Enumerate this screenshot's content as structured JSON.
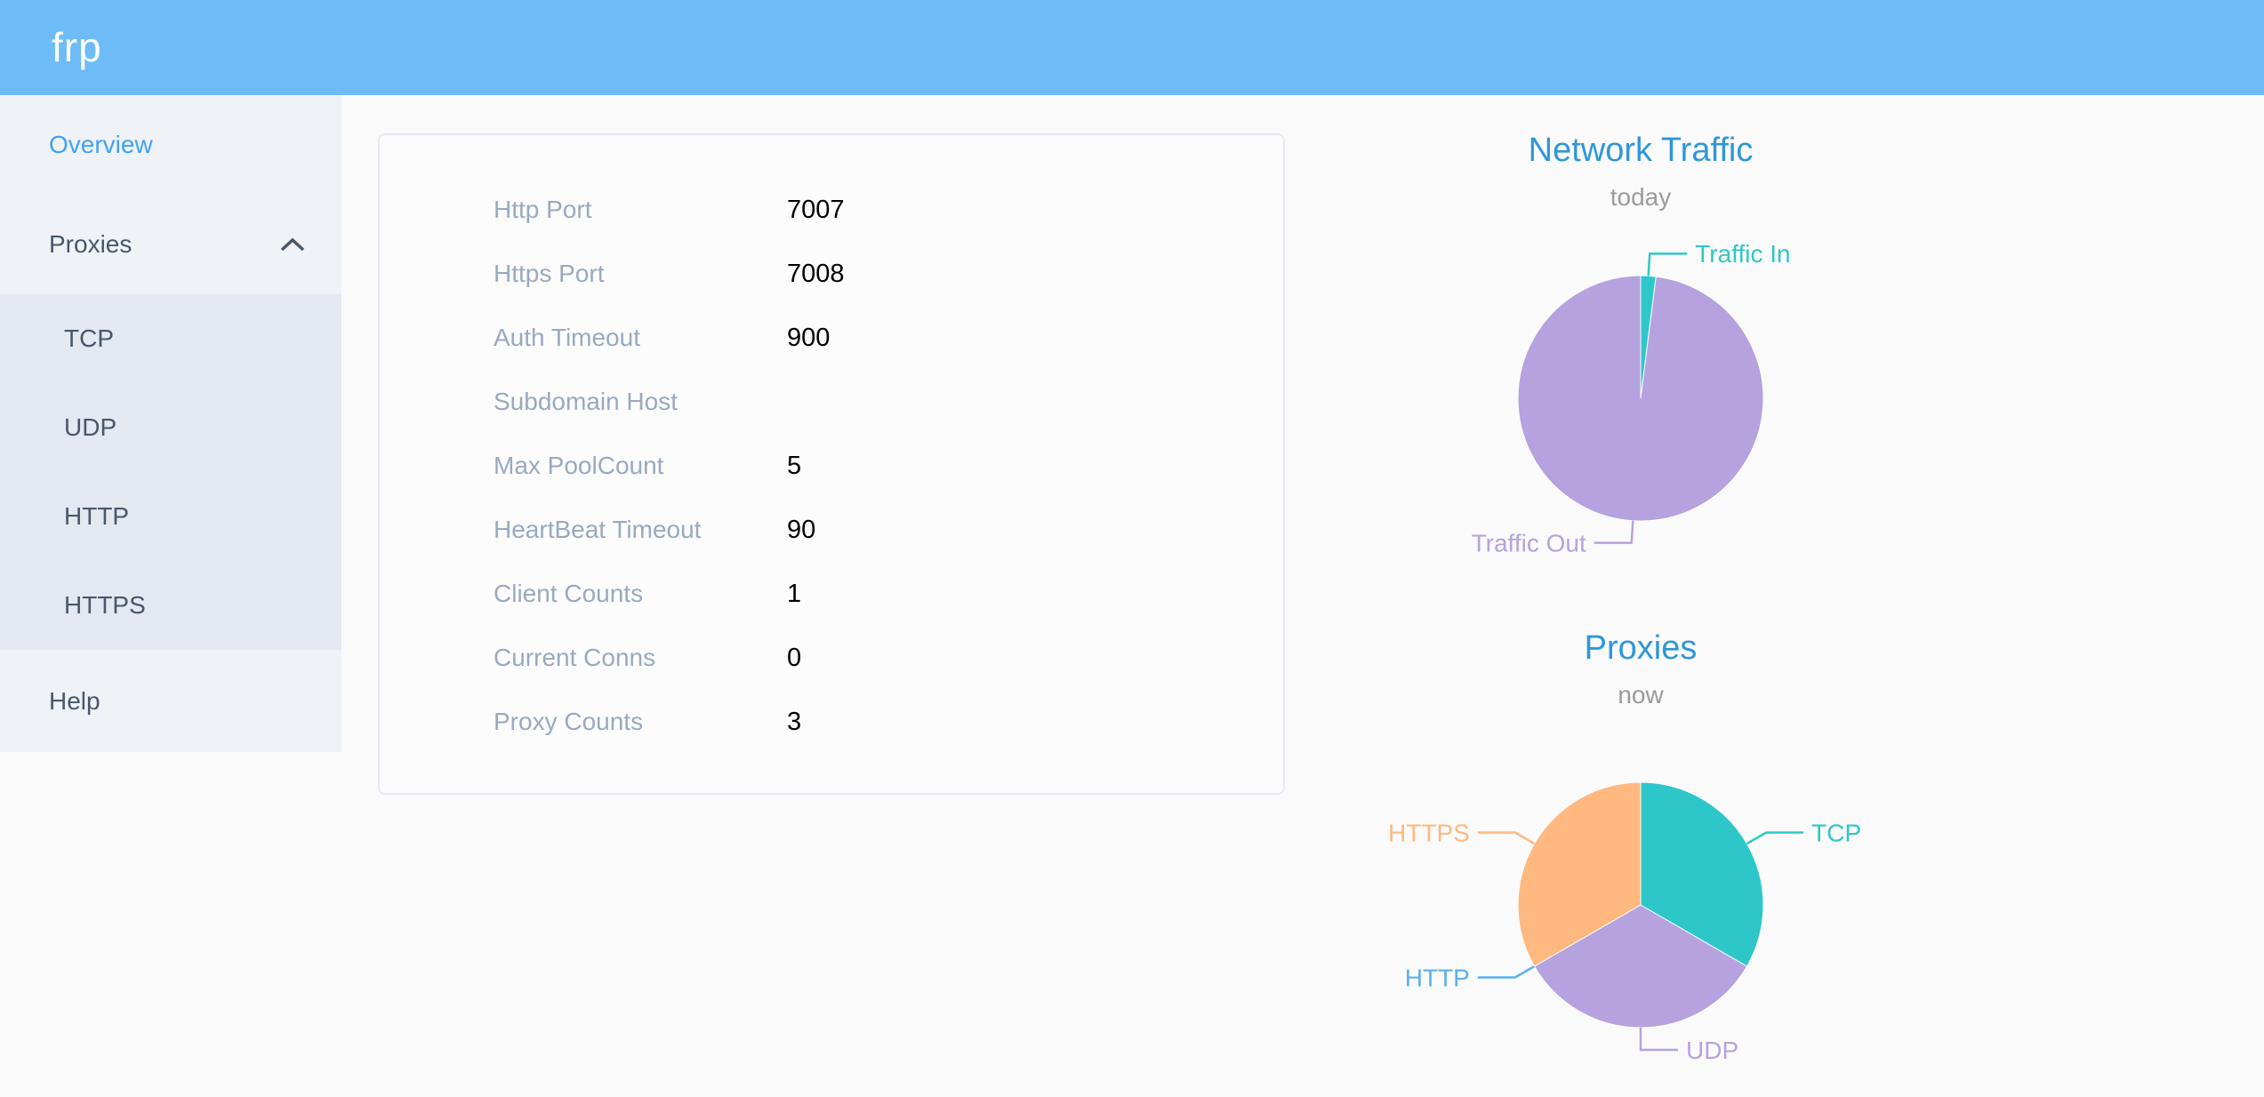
{
  "header": {
    "logo": "frp"
  },
  "sidebar": {
    "items": [
      {
        "id": "overview",
        "label": "Overview",
        "active": true
      },
      {
        "id": "proxies",
        "label": "Proxies",
        "expanded": true,
        "children": [
          {
            "id": "tcp",
            "label": "TCP"
          },
          {
            "id": "udp",
            "label": "UDP"
          },
          {
            "id": "http",
            "label": "HTTP"
          },
          {
            "id": "https",
            "label": "HTTPS"
          }
        ]
      },
      {
        "id": "help",
        "label": "Help"
      }
    ]
  },
  "server_info": {
    "rows": [
      {
        "label": "Http Port",
        "value": "7007"
      },
      {
        "label": "Https Port",
        "value": "7008"
      },
      {
        "label": "Auth Timeout",
        "value": "900"
      },
      {
        "label": "Subdomain Host",
        "value": ""
      },
      {
        "label": "Max PoolCount",
        "value": "5"
      },
      {
        "label": "HeartBeat Timeout",
        "value": "90"
      },
      {
        "label": "Client Counts",
        "value": "1"
      },
      {
        "label": "Current Conns",
        "value": "0"
      },
      {
        "label": "Proxy Counts",
        "value": "3"
      }
    ]
  },
  "chart_data": [
    {
      "type": "pie",
      "title": "Network Traffic",
      "subtitle": "today",
      "unit": "percent-of-total (estimated from slice angles; byte values not shown)",
      "legend_position": "none (callout labels)",
      "slices": [
        {
          "label": "Traffic In",
          "value": 2,
          "color": "#2ec7c9",
          "label_side": "right"
        },
        {
          "label": "Traffic Out",
          "value": 98,
          "color": "#b6a2de",
          "label_side": "left"
        }
      ]
    },
    {
      "type": "pie",
      "title": "Proxies",
      "subtitle": "now",
      "unit": "proxy count (3 total)",
      "legend_position": "none (callout labels)",
      "slices": [
        {
          "label": "TCP",
          "value": 1,
          "color": "#2ec7c9",
          "label_side": "right"
        },
        {
          "label": "UDP",
          "value": 1,
          "color": "#b6a2de",
          "label_side": "right"
        },
        {
          "label": "HTTP",
          "value": 0,
          "color": "#5ab1ef",
          "label_side": "left"
        },
        {
          "label": "HTTPS",
          "value": 1,
          "color": "#ffb980",
          "label_side": "left"
        }
      ]
    }
  ],
  "colors": {
    "header_bg": "#6dbcf8",
    "sidebar_active": "#3fa2f7",
    "chart_title": "#2e97d8",
    "label_gray": "#9aa9bf"
  }
}
